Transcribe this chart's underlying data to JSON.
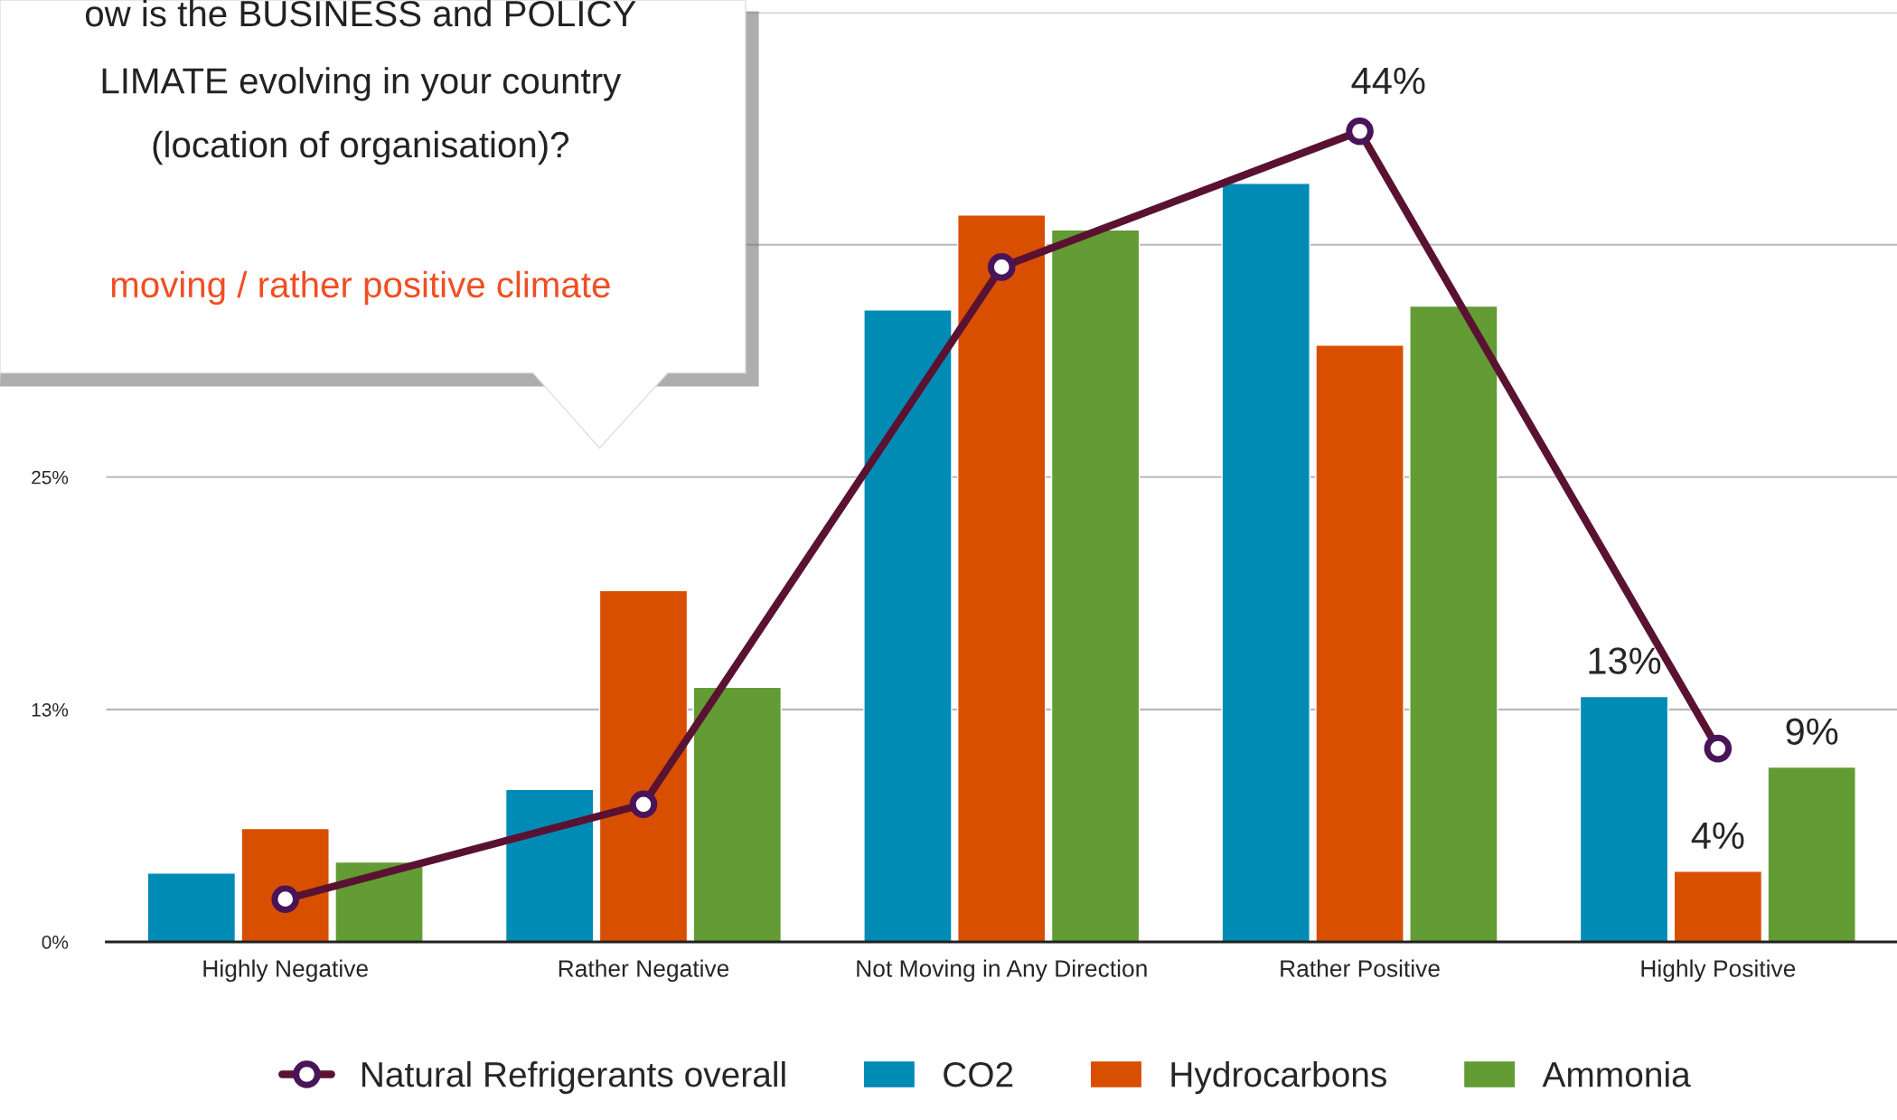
{
  "chart_data": {
    "type": "bar",
    "categories": [
      "Highly Negative",
      "Rather Negative",
      "Not Moving in Any Direction",
      "Rather Positive",
      "Highly Positive"
    ],
    "series": [
      {
        "name": "Natural Refrigerants overall",
        "type": "line",
        "color": "#5a1232",
        "marker": "circle",
        "values": [
          2.3,
          7.4,
          36.3,
          43.6,
          10.4
        ],
        "value_labels": [
          null,
          null,
          null,
          "44%",
          null
        ]
      },
      {
        "name": "CO2",
        "color": "#008bb5",
        "values": [
          3.7,
          8.2,
          34.0,
          40.8,
          13.2
        ],
        "value_labels": [
          null,
          null,
          null,
          null,
          "13%"
        ]
      },
      {
        "name": "Hydrocarbons",
        "color": "#d94f00",
        "values": [
          6.1,
          18.9,
          39.1,
          32.1,
          3.8
        ],
        "value_labels": [
          null,
          null,
          null,
          null,
          "4%"
        ]
      },
      {
        "name": "Ammonia",
        "color": "#639b35",
        "values": [
          4.3,
          13.7,
          38.3,
          34.2,
          9.4
        ],
        "value_labels": [
          null,
          null,
          null,
          null,
          "9%"
        ]
      }
    ],
    "ylim": [
      0,
      50
    ],
    "yticks": [
      {
        "value": 0,
        "label": "0%"
      },
      {
        "value": 12.5,
        "label": "13%"
      },
      {
        "value": 25,
        "label": "25%"
      },
      {
        "value": 37.5,
        "label": null
      },
      {
        "value": 50,
        "label": null
      }
    ],
    "grid": "y",
    "legend": "bottom",
    "annotations": [
      "ow is the BUSINESS and POLICY",
      "LIMATE evolving in your country",
      "(location of organisation)?",
      "moving / rather positive climate"
    ]
  }
}
